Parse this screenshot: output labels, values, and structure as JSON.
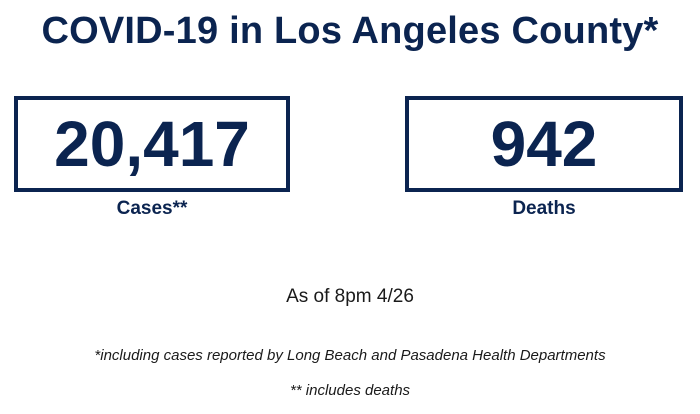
{
  "header": {
    "title": "COVID-19 in Los Angeles County*"
  },
  "stats": {
    "cases": {
      "value": "20,417",
      "label": "Cases**"
    },
    "deaths": {
      "value": "942",
      "label": "Deaths"
    }
  },
  "as_of": "As of 8pm 4/26",
  "footnotes": {
    "cases_note": "*including cases reported by Long Beach and Pasadena Health Departments",
    "deaths_note": "** includes deaths"
  },
  "colors": {
    "primary": "#0b2450",
    "text": "#1a1a1a",
    "background": "#ffffff"
  }
}
